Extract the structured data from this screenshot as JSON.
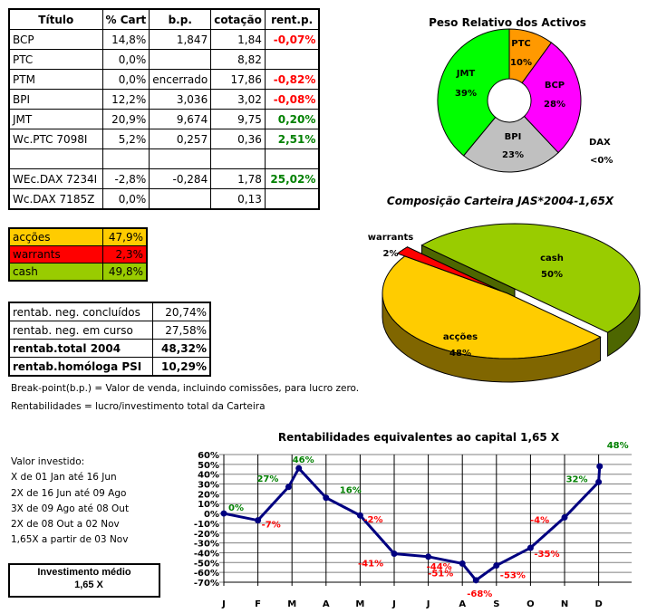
{
  "portfolio_table": {
    "headers": [
      "Título",
      "% Cart",
      "b.p.",
      "cotação",
      "rent.p."
    ],
    "rows": [
      {
        "titulo": "BCP",
        "cart": "14,8%",
        "bp": "1,847",
        "cotacao": "1,84",
        "rent": "-0,07%",
        "sign": "neg"
      },
      {
        "titulo": "PTC",
        "cart": "0,0%",
        "bp": "",
        "cotacao": "8,82",
        "rent": "",
        "sign": ""
      },
      {
        "titulo": "PTM",
        "cart": "0,0%",
        "bp": "encerrado",
        "cotacao": "17,86",
        "rent": "-0,82%",
        "sign": "neg"
      },
      {
        "titulo": "BPI",
        "cart": "12,2%",
        "bp": "3,036",
        "cotacao": "3,02",
        "rent": "-0,08%",
        "sign": "neg"
      },
      {
        "titulo": "JMT",
        "cart": "20,9%",
        "bp": "9,674",
        "cotacao": "9,75",
        "rent": "0,20%",
        "sign": "pos"
      },
      {
        "titulo": "Wc.PTC 7098I",
        "cart": "5,2%",
        "bp": "0,257",
        "cotacao": "0,36",
        "rent": "2,51%",
        "sign": "pos"
      },
      {
        "titulo": "",
        "cart": "",
        "bp": "",
        "cotacao": "",
        "rent": "",
        "sign": ""
      },
      {
        "titulo": "WEc.DAX 7234I",
        "cart": "-2,8%",
        "bp": "-0,284",
        "cotacao": "1,78",
        "rent": "25,02%",
        "sign": "pos"
      },
      {
        "titulo": "Wc.DAX 7185Z",
        "cart": "0,0%",
        "bp": "",
        "cotacao": "0,13",
        "rent": "",
        "sign": ""
      }
    ]
  },
  "composition_table": [
    {
      "label": "acções",
      "value": "47,9%",
      "color": "#ffcc00"
    },
    {
      "label": "warrants",
      "value": "2,3%",
      "color": "#ff0000"
    },
    {
      "label": "cash",
      "value": "49,8%",
      "color": "#99cc00"
    }
  ],
  "returns_table": [
    {
      "label": "rentab. neg. concluídos",
      "value": "20,74%",
      "bold": false
    },
    {
      "label": "rentab. neg. em curso",
      "value": "27,58%",
      "bold": false
    },
    {
      "label": "rentab.total 2004",
      "value": "48,32%",
      "bold": true
    },
    {
      "label": "rentab.homóloga PSI",
      "value": "10,29%",
      "bold": true
    }
  ],
  "notes": [
    "Break-point(b.p.) = Valor de venda, incluindo comissões, para lucro zero.",
    "Rentabilidades = lucro/investimento total da Carteira"
  ],
  "investment": {
    "title": "Valor investido:",
    "lines": [
      "X de 01 Jan até 16 Jun",
      "2X de 16 Jun até 09 Ago",
      "3X de 09 Ago até 08 Out",
      "2X de 08 Out a 02 Nov",
      "1,65X a partir de 03 Nov"
    ],
    "avg_label": "Investimento médio",
    "avg_value": "1,65  X"
  },
  "chart_data": [
    {
      "type": "pie",
      "variant": "doughnut",
      "title": "Peso Relativo dos Activos",
      "slices": [
        {
          "label": "PTC",
          "value": 10,
          "text": "10%",
          "color": "#ff9900"
        },
        {
          "label": "BCP",
          "value": 28,
          "text": "28%",
          "color": "#ff00ff"
        },
        {
          "label": "BPI",
          "value": 23,
          "text": "23%",
          "color": "#c0c0c0"
        },
        {
          "label": "JMT",
          "value": 39,
          "text": "39%",
          "color": "#00ff00"
        }
      ],
      "extra_label": {
        "label": "DAX",
        "text": "<0%"
      }
    },
    {
      "type": "pie",
      "variant": "3d-exploded",
      "title": "Composição Carteira JAS*2004-1,65X",
      "slices": [
        {
          "label": "cash",
          "value": 50,
          "text": "50%",
          "color": "#99cc00",
          "side": "#4d6600"
        },
        {
          "label": "acções",
          "value": 48,
          "text": "48%",
          "color": "#ffcc00",
          "side": "#806600"
        },
        {
          "label": "warrants",
          "value": 2,
          "text": "2%",
          "color": "#ff0000",
          "side": "#800000"
        }
      ]
    },
    {
      "type": "line",
      "title": "Rentabilidades equivalentes ao capital 1,65 X",
      "categories": [
        "J",
        "F",
        "M",
        "A",
        "M",
        "J",
        "J",
        "A",
        "S",
        "O",
        "N",
        "D"
      ],
      "ylim": [
        -70,
        60
      ],
      "yticks": [
        "60%",
        "50%",
        "40%",
        "30%",
        "20%",
        "10%",
        "0%",
        "-10%",
        "-20%",
        "-30%",
        "-40%",
        "-50%",
        "-60%",
        "-70%"
      ],
      "grid": true,
      "line_color": "#000080",
      "points": [
        {
          "x": 0,
          "y": 0,
          "label": "0%"
        },
        {
          "x": 1,
          "y": -7,
          "label": "-7%"
        },
        {
          "x": 1.9,
          "y": 27,
          "label": "27%"
        },
        {
          "x": 2.2,
          "y": 46,
          "label": "46%"
        },
        {
          "x": 3,
          "y": 16,
          "label": "16%"
        },
        {
          "x": 4,
          "y": -2,
          "label": "-2%"
        },
        {
          "x": 5,
          "y": -41,
          "label": "-41%"
        },
        {
          "x": 6,
          "y": -44,
          "label": "-44%"
        },
        {
          "x": 7,
          "y": -51,
          "label": "-51%"
        },
        {
          "x": 7.4,
          "y": -68,
          "label": "-68%"
        },
        {
          "x": 8,
          "y": -53,
          "label": "-53%"
        },
        {
          "x": 9,
          "y": -35,
          "label": "-35%"
        },
        {
          "x": 10,
          "y": -4,
          "label": "-4%"
        },
        {
          "x": 11,
          "y": 32,
          "label": "32%"
        },
        {
          "x": 11.03,
          "y": 48,
          "label": "48%"
        }
      ]
    }
  ]
}
